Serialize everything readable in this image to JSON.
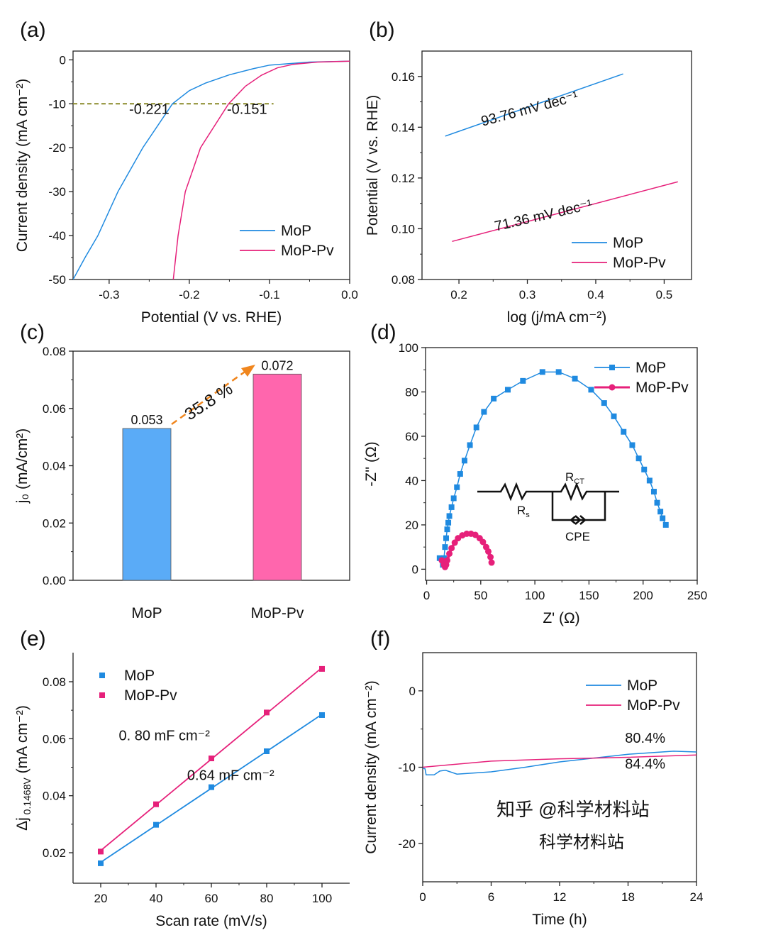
{
  "colors": {
    "mop": "#1f8ae0",
    "mopPv": "#e6207a",
    "barMop": "#5aabf7",
    "barMopPv": "#ff66ad",
    "arrow": "#f0861e",
    "dash": "#8a8a2a"
  },
  "watermark": {
    "line1": "知乎 @科学材料站",
    "line2": "科学材料站"
  },
  "chart_data": [
    {
      "panel": "(a)",
      "type": "line",
      "xlabel": "Potential (V vs. RHE)",
      "ylabel": "Current density (mA cm⁻²)",
      "xlim": [
        -0.345,
        0
      ],
      "ylim": [
        -50,
        2
      ],
      "xticks": [
        -0.3,
        -0.2,
        -0.1,
        0.0
      ],
      "xtick_labels": [
        "-0.3",
        "-0.2",
        "-0.1",
        "0.0"
      ],
      "yticks": [
        0,
        -10,
        -20,
        -30,
        -40,
        -50
      ],
      "ytick_labels": [
        "0",
        "-10",
        "-20",
        "-30",
        "-40",
        "-50"
      ],
      "legend": "bottom-right",
      "series": [
        {
          "name": "MoP",
          "color": "#1f8ae0",
          "x": [
            -0.345,
            -0.33,
            -0.314,
            -0.289,
            -0.258,
            -0.221,
            -0.2,
            -0.18,
            -0.15,
            -0.12,
            -0.1,
            -0.05,
            0
          ],
          "y": [
            -50,
            -45,
            -40,
            -30,
            -20,
            -10,
            -7,
            -5.3,
            -3.4,
            -2,
            -1.2,
            -0.5,
            -0.3
          ]
        },
        {
          "name": "MoP-Pv",
          "color": "#e6207a",
          "x": [
            -0.22,
            -0.214,
            -0.205,
            -0.186,
            -0.151,
            -0.13,
            -0.11,
            -0.09,
            -0.07,
            -0.04,
            0
          ],
          "y": [
            -50,
            -40,
            -30,
            -20,
            -10,
            -6,
            -3.5,
            -1.8,
            -1,
            -0.5,
            -0.3
          ]
        }
      ],
      "reference_line": {
        "y": -10,
        "x": [
          -0.345,
          -0.095
        ]
      },
      "annotations": [
        {
          "text": "-0.221",
          "x": -0.25,
          "y": -12.3,
          "color": "#1f8ae0"
        },
        {
          "text": "-0.151",
          "x": -0.128,
          "y": -12.3,
          "color": "#e6207a"
        }
      ]
    },
    {
      "panel": "(b)",
      "type": "line",
      "xlabel": "log (j/mA cm⁻²)",
      "ylabel": "Potential (V vs. RHE)",
      "xlim": [
        0.146,
        0.54
      ],
      "ylim": [
        0.08,
        0.17
      ],
      "xticks": [
        0.2,
        0.3,
        0.4,
        0.5
      ],
      "xtick_labels": [
        "0.2",
        "0.3",
        "0.4",
        "0.5"
      ],
      "yticks": [
        0.08,
        0.1,
        0.12,
        0.14,
        0.16
      ],
      "ytick_labels": [
        "0.08",
        "0.10",
        "0.12",
        "0.14",
        "0.16"
      ],
      "legend": "bottom-right",
      "series": [
        {
          "name": "MoP",
          "color": "#1f8ae0",
          "x": [
            0.18,
            0.44
          ],
          "y": [
            0.1365,
            0.161
          ]
        },
        {
          "name": "MoP-Pv",
          "color": "#e6207a",
          "x": [
            0.19,
            0.52
          ],
          "y": [
            0.095,
            0.1185
          ]
        }
      ],
      "annotations": [
        {
          "text": "93.76 mV dec⁻¹",
          "x": 0.305,
          "y": 0.1455,
          "color": "#1f8ae0",
          "rotate": -15
        },
        {
          "text": "71.36 mV dec⁻¹",
          "x": 0.325,
          "y": 0.1035,
          "color": "#e6207a",
          "rotate": -13
        }
      ]
    },
    {
      "panel": "(c)",
      "type": "bar",
      "xlabel": "",
      "ylabel": "j₀ (mA/cm²)",
      "categories": [
        "MoP",
        "MoP-Pv"
      ],
      "values": [
        0.053,
        0.072
      ],
      "value_labels": [
        "0.053",
        "0.072"
      ],
      "colors": [
        "#5aabf7",
        "#ff66ad"
      ],
      "ylim": [
        0,
        0.08
      ],
      "yticks": [
        0,
        0.02,
        0.04,
        0.06,
        0.08
      ],
      "ytick_labels": [
        "0.00",
        "0.02",
        "0.04",
        "0.06",
        "0.08"
      ],
      "annotations": [
        {
          "text": "35.8 %",
          "color": "#f0861e",
          "arrow": "from MoP to MoP-Pv"
        }
      ]
    },
    {
      "panel": "(d)",
      "type": "scatter",
      "xlabel": "Z' (Ω)",
      "ylabel": "-Z'' (Ω)",
      "xlim": [
        -1,
        250
      ],
      "ylim": [
        -5,
        100
      ],
      "xticks": [
        0,
        50,
        100,
        150,
        200,
        250
      ],
      "xtick_labels": [
        "0",
        "50",
        "100",
        "150",
        "200",
        "250"
      ],
      "yticks": [
        0,
        20,
        40,
        60,
        80,
        100
      ],
      "ytick_labels": [
        "0",
        "20",
        "40",
        "60",
        "80",
        "100"
      ],
      "legend": "top-right",
      "series": [
        {
          "name": "MoP",
          "color": "#1f8ae0",
          "marker": "square",
          "x": [
            12,
            15,
            16,
            17,
            18,
            19,
            20,
            21,
            23,
            25,
            28,
            31,
            35,
            40,
            46,
            53,
            62,
            75,
            89,
            107,
            122,
            137,
            152,
            164,
            173,
            182,
            190,
            196,
            201,
            206,
            210,
            213,
            216,
            218,
            221
          ],
          "y": [
            5,
            2,
            5,
            10,
            14,
            18,
            21,
            24,
            28,
            32,
            37,
            43,
            49,
            56,
            64,
            71,
            77,
            81,
            85,
            89,
            89,
            86,
            81,
            75,
            69,
            62,
            56,
            50,
            45,
            40,
            35,
            30,
            26,
            23,
            20
          ]
        },
        {
          "name": "MoP-Pv",
          "color": "#e6207a",
          "marker": "circle",
          "x": [
            14,
            16,
            17,
            18,
            19,
            21,
            23,
            26,
            29,
            33,
            37,
            41,
            45,
            49,
            52,
            55,
            57,
            59,
            60
          ],
          "y": [
            4,
            2,
            1,
            2,
            4,
            7,
            9.5,
            12,
            14,
            15.3,
            16,
            16,
            15.5,
            14,
            12.3,
            10,
            8,
            5.5,
            3
          ]
        }
      ],
      "inset_circuit": {
        "labels": {
          "rct": "R",
          "rct_sub": "CT",
          "rs": "R",
          "rs_sub": "s",
          "cpe": "CPE"
        }
      }
    },
    {
      "panel": "(e)",
      "type": "scatter",
      "xlabel": "Scan rate (mV/s)",
      "ylabel": "Δj 0.1468V (mA cm⁻²)",
      "ylabel_main": "Δj",
      "ylabel_sub": " 0.1468V",
      "ylabel_unit": " (mA cm⁻²)",
      "xlim": [
        10,
        110
      ],
      "ylim": [
        0.0093,
        0.0902
      ],
      "xticks": [
        20,
        40,
        60,
        80,
        100
      ],
      "xtick_labels": [
        "20",
        "40",
        "60",
        "80",
        "100"
      ],
      "yticks": [
        0.02,
        0.04,
        0.06,
        0.08
      ],
      "ytick_labels": [
        "0.02",
        "0.04",
        "0.06",
        "0.08"
      ],
      "legend": "top-left",
      "series": [
        {
          "name": "MoP",
          "color": "#1f8ae0",
          "marker": "square",
          "x": [
            20,
            40,
            60,
            80,
            100
          ],
          "y": [
            0.0163,
            0.0298,
            0.043,
            0.0556,
            0.0683
          ],
          "fit": true
        },
        {
          "name": "MoP-Pv",
          "color": "#e6207a",
          "marker": "square",
          "x": [
            20,
            40,
            60,
            80,
            100
          ],
          "y": [
            0.0204,
            0.037,
            0.0531,
            0.0692,
            0.0845
          ],
          "fit": true
        }
      ],
      "annotations": [
        {
          "text": "0. 80 mF cm⁻²",
          "x": 43,
          "y": 0.0595,
          "color": "#e6207a"
        },
        {
          "text": "0.64 mF cm⁻²",
          "x": 67,
          "y": 0.0455,
          "color": "#1f8ae0"
        }
      ]
    },
    {
      "panel": "(f)",
      "type": "line",
      "xlabel": "Time (h)",
      "ylabel": "Current density (mA cm⁻²)",
      "xlim": [
        0,
        24
      ],
      "ylim": [
        -25,
        5
      ],
      "xticks": [
        0,
        6,
        12,
        18,
        24
      ],
      "xtick_labels": [
        "0",
        "6",
        "12",
        "18",
        "24"
      ],
      "yticks": [
        0,
        -10,
        -20
      ],
      "ytick_labels": [
        "0",
        "-10",
        "-20"
      ],
      "legend": "top-right",
      "series": [
        {
          "name": "MoP",
          "color": "#1f8ae0",
          "x": [
            0,
            0.2,
            0.3,
            1,
            1.5,
            2,
            3,
            6,
            9,
            12,
            15,
            18,
            22,
            24
          ],
          "y": [
            -10.1,
            -10.2,
            -11,
            -11,
            -10.5,
            -10.4,
            -10.9,
            -10.6,
            -10,
            -9.3,
            -8.8,
            -8.3,
            -7.9,
            -8.0
          ]
        },
        {
          "name": "MoP-Pv",
          "color": "#e6207a",
          "x": [
            0,
            6,
            12,
            15,
            18,
            24
          ],
          "y": [
            -10,
            -9.2,
            -8.9,
            -8.8,
            -8.7,
            -8.4
          ]
        }
      ],
      "annotations": [
        {
          "text": "80.4%",
          "x": 19.5,
          "y": -6.8,
          "color": "#1f8ae0"
        },
        {
          "text": "84.4%",
          "x": 19.5,
          "y": -10.2,
          "color": "#e6207a"
        }
      ]
    }
  ]
}
